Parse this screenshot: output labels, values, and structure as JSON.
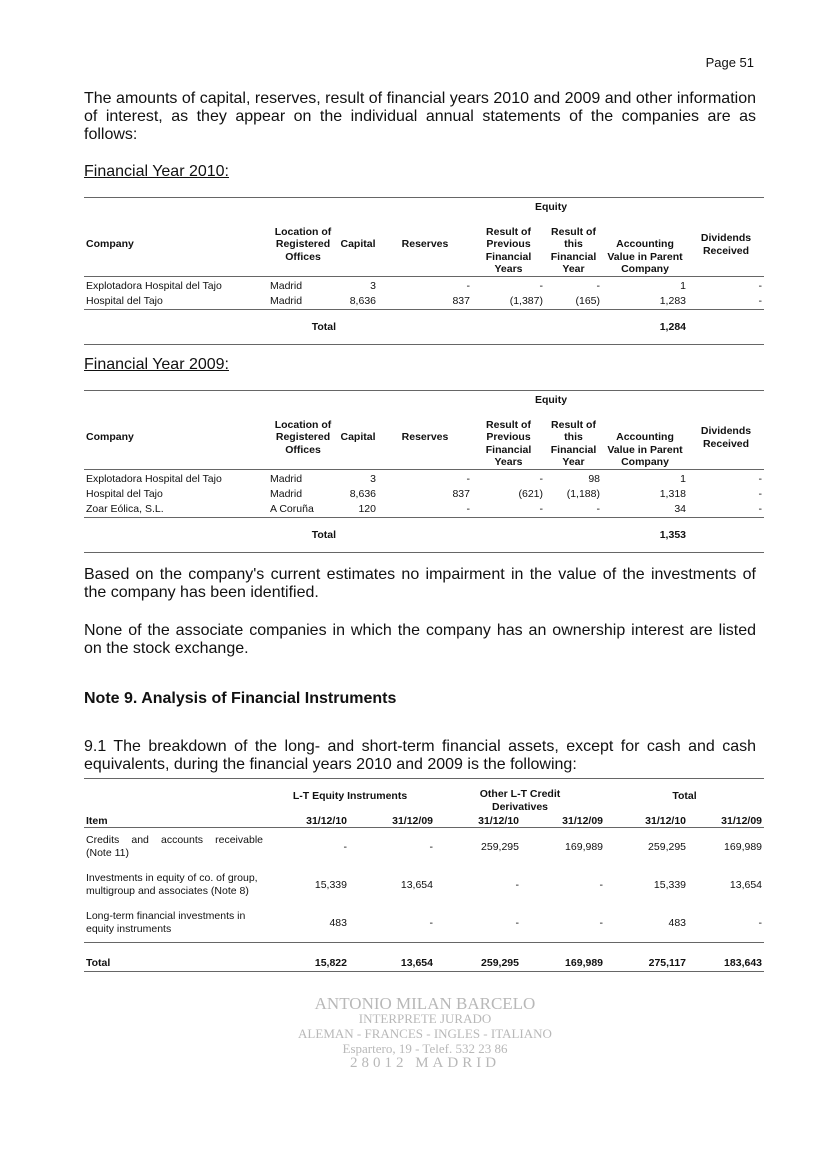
{
  "page_number": "Page 51",
  "intro": "The amounts of capital, reserves, result of financial years 2010 and 2009 and other information of interest, as they appear on the individual annual statements of the companies are as follows:",
  "equity_headers": {
    "group": "Equity",
    "columns": [
      "Company",
      "Location of Registered Offices",
      "Capital",
      "Reserves",
      "Result of Previous Financial Years",
      "Result of this Financial Year",
      "Accounting Value in Parent Company",
      "Dividends Received"
    ]
  },
  "fy2010": {
    "title": "Financial Year 2010:",
    "rows": [
      [
        "Explotadora Hospital del Tajo",
        "Madrid",
        "3",
        "-",
        "-",
        "-",
        "1",
        "-"
      ],
      [
        "Hospital del Tajo",
        "Madrid",
        "8,636",
        "837",
        "(1,387)",
        "(165)",
        "1,283",
        "-"
      ]
    ],
    "total_label": "Total",
    "total_value": "1,284"
  },
  "fy2009": {
    "title": "Financial Year 2009:",
    "rows": [
      [
        "Explotadora Hospital del Tajo",
        "Madrid",
        "3",
        "-",
        "-",
        "98",
        "1",
        "-"
      ],
      [
        "Hospital del Tajo",
        "Madrid",
        "8,636",
        "837",
        "(621)",
        "(1,188)",
        "1,318",
        "-"
      ],
      [
        "Zoar Eólica, S.L.",
        "A Coruña",
        "120",
        "-",
        "-",
        "-",
        "34",
        "-"
      ]
    ],
    "total_label": "Total",
    "total_value": "1,353"
  },
  "para_impairment": "Based on the company's current estimates no impairment in the value of the investments of the company has been identified.",
  "para_listed": "None of the associate companies in which the company has an ownership interest are listed on the stock exchange.",
  "note9_title": "Note 9. Analysis of Financial Instruments",
  "note9_para": "9.1  The breakdown of the long- and short-term financial assets, except for cash and cash equivalents, during the financial years 2010 and 2009 is the following:",
  "fin_table": {
    "groups": [
      "L-T Equity Instruments",
      "Other L-T Credit Derivatives",
      "Total"
    ],
    "item_label": "Item",
    "dates": [
      "31/12/10",
      "31/12/09",
      "31/12/10",
      "31/12/09",
      "31/12/10",
      "31/12/09"
    ],
    "rows": [
      [
        "Credits and accounts receivable (Note 11)",
        "-",
        "-",
        "259,295",
        "169,989",
        "259,295",
        "169,989"
      ],
      [
        "Investments in equity of co. of group, multigroup and associates (Note 8)",
        "15,339",
        "13,654",
        "-",
        "-",
        "15,339",
        "13,654"
      ],
      [
        "Long-term financial investments in equity instruments",
        "483",
        "-",
        "-",
        "-",
        "483",
        "-"
      ]
    ],
    "total": [
      "Total",
      "15,822",
      "13,654",
      "259,295",
      "169,989",
      "275,117",
      "183,643"
    ]
  },
  "stamp": {
    "lines": [
      "ANTONIO MILAN BARCELO",
      "INTERPRETE JURADO",
      "ALEMAN - FRANCES - INGLES - ITALIANO",
      "Espartero, 19 - Telef. 532 23 86",
      "28012 MADRID"
    ]
  }
}
